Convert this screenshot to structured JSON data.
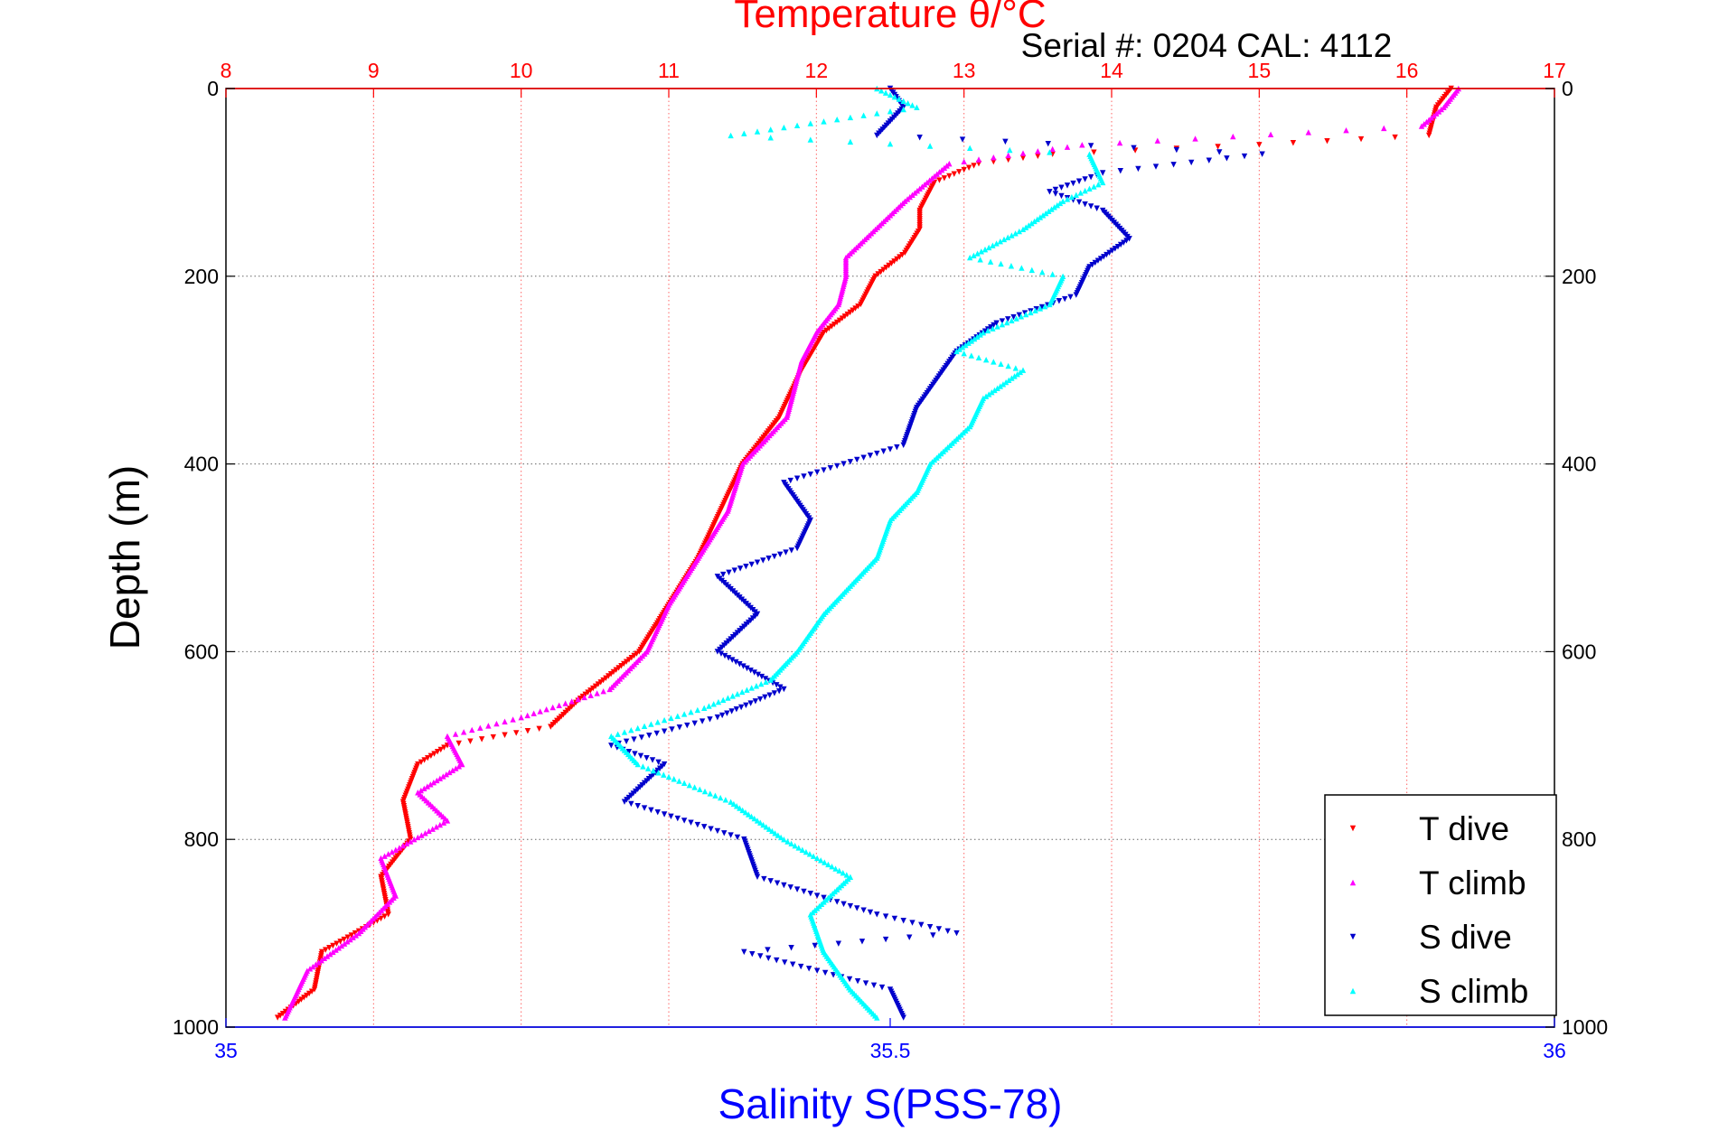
{
  "chart_data": {
    "type": "scatter",
    "title": "Temperature θ/°C",
    "subtitle": "Serial #: 0204  CAL: 4112",
    "ylabel": "Depth (m)",
    "xlabel_bottom": "Salinity S(PSS-78)",
    "y_axis": {
      "range": [
        0,
        1000
      ],
      "reversed": true,
      "ticks": [
        0,
        200,
        400,
        600,
        800,
        1000
      ]
    },
    "x_top": {
      "label": "Temperature θ/°C",
      "range": [
        8,
        17
      ],
      "ticks": [
        8,
        9,
        10,
        11,
        12,
        13,
        14,
        15,
        16,
        17
      ]
    },
    "x_bottom": {
      "label": "Salinity S(PSS-78)",
      "range": [
        35,
        36
      ],
      "tick_labels": [
        "35",
        "35.5",
        "36"
      ],
      "tick_values": [
        35,
        35.5,
        36
      ]
    },
    "grid": true,
    "legend_position": "bottom-right",
    "colors": {
      "title": "#ff0000",
      "bottom_axis": "#0000ff",
      "t_dive": "#ff0000",
      "t_climb": "#ff00ff",
      "s_dive": "#0000cc",
      "s_climb": "#00ffff",
      "grid_temp": "#ff6666",
      "grid_depth": "#666666"
    },
    "series": [
      {
        "name": "T dive",
        "axis": "top",
        "marker": "triangle-down",
        "color": "#ff0000",
        "depth": [
          0,
          20,
          50,
          60,
          70,
          80,
          100,
          130,
          150,
          175,
          200,
          230,
          260,
          300,
          350,
          400,
          450,
          500,
          550,
          600,
          650,
          680,
          700,
          720,
          760,
          800,
          840,
          880,
          920,
          960,
          990
        ],
        "values": [
          16.3,
          16.2,
          16.15,
          15.0,
          13.6,
          13.1,
          12.8,
          12.7,
          12.7,
          12.6,
          12.4,
          12.3,
          12.05,
          11.9,
          11.75,
          11.5,
          11.35,
          11.2,
          11.0,
          10.8,
          10.4,
          10.2,
          9.5,
          9.3,
          9.2,
          9.25,
          9.05,
          9.1,
          8.65,
          8.6,
          8.35
        ]
      },
      {
        "name": "T climb",
        "axis": "top",
        "marker": "triangle-up",
        "color": "#ff00ff",
        "depth": [
          0,
          20,
          40,
          60,
          80,
          100,
          120,
          150,
          180,
          200,
          230,
          260,
          290,
          320,
          350,
          400,
          450,
          500,
          550,
          600,
          640,
          670,
          690,
          720,
          750,
          780,
          820,
          860,
          900,
          940,
          990
        ],
        "values": [
          16.35,
          16.25,
          16.1,
          13.8,
          12.9,
          12.75,
          12.6,
          12.4,
          12.2,
          12.2,
          12.15,
          12.0,
          11.9,
          11.85,
          11.8,
          11.5,
          11.4,
          11.2,
          11.0,
          10.85,
          10.6,
          10.0,
          9.5,
          9.6,
          9.3,
          9.5,
          9.05,
          9.15,
          8.9,
          8.55,
          8.4
        ]
      },
      {
        "name": "S dive",
        "axis": "bottom",
        "marker": "triangle-down",
        "color": "#0000cc",
        "depth": [
          0,
          20,
          50,
          70,
          90,
          110,
          130,
          160,
          190,
          220,
          250,
          280,
          300,
          340,
          380,
          420,
          460,
          490,
          520,
          560,
          600,
          640,
          670,
          700,
          720,
          760,
          800,
          840,
          880,
          900,
          920,
          960,
          990
        ],
        "values": [
          35.5,
          35.51,
          35.49,
          35.78,
          35.66,
          35.62,
          35.66,
          35.68,
          35.65,
          35.64,
          35.58,
          35.55,
          35.54,
          35.52,
          35.51,
          35.42,
          35.44,
          35.43,
          35.37,
          35.4,
          35.37,
          35.42,
          35.37,
          35.29,
          35.33,
          35.3,
          35.39,
          35.4,
          35.49,
          35.55,
          35.39,
          35.5,
          35.51
        ]
      },
      {
        "name": "S climb",
        "axis": "bottom",
        "marker": "triangle-up",
        "color": "#00ffff",
        "depth": [
          0,
          20,
          50,
          70,
          100,
          120,
          150,
          180,
          200,
          230,
          260,
          280,
          300,
          330,
          360,
          400,
          430,
          460,
          500,
          530,
          560,
          600,
          630,
          660,
          690,
          720,
          760,
          800,
          840,
          880,
          920,
          960,
          990
        ],
        "values": [
          35.49,
          35.52,
          35.38,
          35.65,
          35.66,
          35.63,
          35.6,
          35.56,
          35.63,
          35.62,
          35.57,
          35.55,
          35.6,
          35.57,
          35.56,
          35.53,
          35.52,
          35.5,
          35.49,
          35.47,
          35.45,
          35.43,
          35.41,
          35.36,
          35.29,
          35.31,
          35.38,
          35.42,
          35.47,
          35.44,
          35.45,
          35.47,
          35.49
        ]
      }
    ]
  }
}
